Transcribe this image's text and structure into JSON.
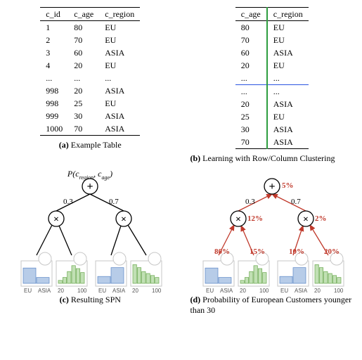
{
  "tableA": {
    "columns": [
      "c_id",
      "c_age",
      "c_region"
    ],
    "rows": [
      [
        "1",
        "80",
        "EU"
      ],
      [
        "2",
        "70",
        "EU"
      ],
      [
        "3",
        "60",
        "ASIA"
      ],
      [
        "4",
        "20",
        "EU"
      ],
      [
        "...",
        "...",
        "..."
      ],
      [
        "998",
        "20",
        "ASIA"
      ],
      [
        "998",
        "25",
        "EU"
      ],
      [
        "999",
        "30",
        "ASIA"
      ],
      [
        "1000",
        "70",
        "ASIA"
      ]
    ]
  },
  "tableB": {
    "columns": [
      "c_age",
      "c_region"
    ],
    "top_rows": [
      [
        "80",
        "EU"
      ],
      [
        "70",
        "EU"
      ],
      [
        "60",
        "ASIA"
      ],
      [
        "20",
        "EU"
      ],
      [
        "...",
        "..."
      ]
    ],
    "bottom_rows": [
      [
        "...",
        "..."
      ],
      [
        "20",
        "ASIA"
      ],
      [
        "25",
        "EU"
      ],
      [
        "30",
        "ASIA"
      ],
      [
        "70",
        "ASIA"
      ]
    ],
    "vsep_color": "#2e9e3f",
    "hsep_color": "#2b55e0"
  },
  "captions": {
    "a": "Example Table",
    "b": "Learning with Row/Column Clustering",
    "c": "Resulting SPN",
    "d": "Probability of European Customers younger than 30"
  },
  "spn": {
    "root_label": "P(c_region, c_age)",
    "weights": [
      "0.3",
      "0.7"
    ],
    "edge_color": "#000000",
    "node_stroke": "#000000",
    "leaf_ticks_region": [
      "EU",
      "ASIA"
    ],
    "leaf_ticks_age": [
      "20",
      "100"
    ],
    "leaves": [
      {
        "type": "region",
        "bars": [
          0.78,
          0.3
        ],
        "color": "blue"
      },
      {
        "type": "age",
        "bars": [
          0.15,
          0.3,
          0.6,
          0.9,
          0.75,
          0.55
        ],
        "color": "green"
      },
      {
        "type": "region",
        "bars": [
          0.35,
          0.8
        ],
        "color": "blue"
      },
      {
        "type": "age",
        "bars": [
          0.95,
          0.8,
          0.6,
          0.5,
          0.4,
          0.3
        ],
        "color": "green"
      }
    ]
  },
  "spn_d": {
    "weights": [
      "0.3",
      "0.7"
    ],
    "edge_color": "#c0392b",
    "prob_root": "5%",
    "prob_left_x": "12%",
    "prob_right_x": "2%",
    "leaf_probs": [
      "80%",
      "15%",
      "10%",
      "20%"
    ],
    "arrow": true
  }
}
